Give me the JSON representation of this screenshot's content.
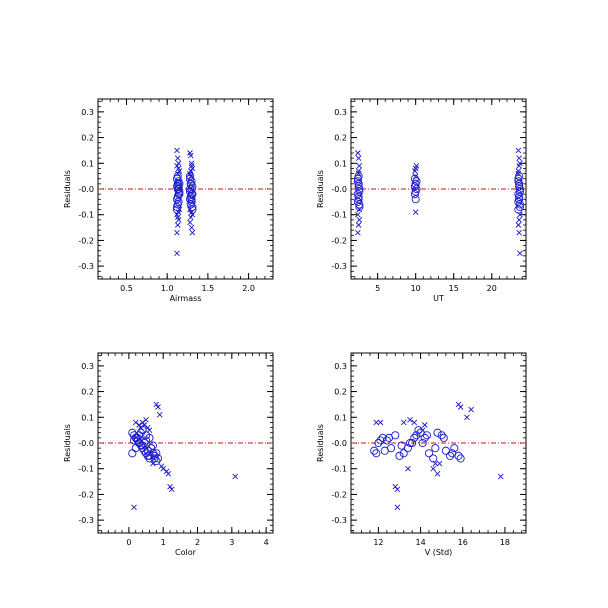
{
  "colors": {
    "marker": "#1a1acc",
    "zero_line": "#cc1111",
    "axis": "#000000",
    "background": "#ffffff"
  },
  "chart_data": [
    {
      "type": "scatter",
      "xlabel": "Airmass",
      "ylabel": "Residuals",
      "xlim": [
        0.15,
        2.3
      ],
      "ylim": [
        -0.35,
        0.35
      ],
      "xticks": [
        0.5,
        1.0,
        1.5,
        2.0
      ],
      "xtick_labels": [
        "0.5",
        "1.0",
        "1.5",
        "2.0"
      ],
      "yticks": [
        -0.3,
        -0.2,
        -0.1,
        0.0,
        0.1,
        0.2,
        0.3
      ],
      "ytick_labels": [
        "-0.3",
        "-0.2",
        "-0.1",
        "-0.0",
        "0.1",
        "0.2",
        "0.3"
      ],
      "zero_line": 0,
      "grid": false,
      "series": [
        {
          "marker": "circle",
          "x": [
            1.12,
            1.13,
            1.14,
            1.15,
            1.12,
            1.13,
            1.14,
            1.12,
            1.15,
            1.13,
            1.14,
            1.12,
            1.13,
            1.15,
            1.14,
            1.12,
            1.13,
            1.14,
            1.28,
            1.29,
            1.3,
            1.31,
            1.28,
            1.29,
            1.3,
            1.31,
            1.28,
            1.29,
            1.3,
            1.31,
            1.28,
            1.29,
            1.3,
            1.31,
            1.28,
            1.3
          ],
          "y": [
            0.04,
            0.02,
            0.0,
            -0.02,
            -0.04,
            -0.06,
            0.03,
            0.01,
            -0.01,
            -0.03,
            -0.05,
            -0.07,
            0.05,
            0.02,
            -0.02,
            -0.08,
            0.0,
            0.01,
            0.04,
            0.02,
            0.0,
            -0.02,
            -0.04,
            -0.06,
            0.03,
            0.01,
            -0.01,
            -0.03,
            -0.05,
            -0.07,
            0.05,
            0.02,
            -0.02,
            -0.08,
            0.0,
            -0.04
          ]
        },
        {
          "marker": "x",
          "x": [
            1.12,
            1.13,
            1.14,
            1.12,
            1.15,
            1.13,
            1.12,
            1.14,
            1.13,
            1.12,
            1.15,
            1.14,
            1.13,
            1.12,
            1.14,
            1.28,
            1.29,
            1.3,
            1.31,
            1.28,
            1.29,
            1.3,
            1.31,
            1.29,
            1.28,
            1.3,
            1.31,
            1.29,
            1.28,
            1.3
          ],
          "y": [
            0.15,
            0.12,
            0.1,
            0.09,
            0.07,
            0.06,
            -0.1,
            -0.12,
            -0.14,
            -0.17,
            -0.08,
            -0.09,
            -0.11,
            -0.25,
            0.08,
            0.14,
            0.13,
            0.09,
            0.08,
            0.06,
            0.05,
            -0.09,
            -0.1,
            -0.11,
            -0.13,
            -0.15,
            -0.17,
            0.07,
            -0.08,
            0.1
          ]
        }
      ]
    },
    {
      "type": "scatter",
      "xlabel": "UT",
      "ylabel": "Residuals",
      "xlim": [
        1.5,
        24.5
      ],
      "ylim": [
        -0.35,
        0.35
      ],
      "xticks": [
        5,
        10,
        15,
        20
      ],
      "xtick_labels": [
        "5",
        "10",
        "15",
        "20"
      ],
      "yticks": [
        -0.3,
        -0.2,
        -0.1,
        0.0,
        0.1,
        0.2,
        0.3
      ],
      "ytick_labels": [
        "-0.3",
        "-0.2",
        "-0.1",
        "-0.0",
        "0.1",
        "0.2",
        "0.3"
      ],
      "zero_line": 0,
      "grid": false,
      "series": [
        {
          "marker": "circle",
          "x": [
            2.4,
            2.5,
            2.6,
            2.4,
            2.5,
            2.6,
            2.4,
            2.5,
            2.6,
            2.5,
            2.4,
            2.6,
            2.5,
            9.9,
            10.0,
            10.1,
            9.9,
            10.0,
            10.1,
            10.0,
            9.9,
            23.5,
            23.6,
            23.7,
            23.5,
            23.6,
            23.7,
            23.5,
            23.6,
            23.7,
            23.6,
            23.5,
            23.7,
            23.6,
            23.5
          ],
          "y": [
            0.04,
            0.02,
            0.0,
            -0.02,
            -0.04,
            -0.06,
            0.03,
            0.01,
            -0.01,
            -0.03,
            -0.05,
            -0.07,
            0.05,
            0.04,
            0.02,
            0.0,
            -0.02,
            -0.04,
            0.03,
            -0.01,
            0.01,
            0.04,
            0.02,
            0.0,
            -0.02,
            -0.04,
            -0.06,
            0.03,
            0.01,
            -0.01,
            -0.03,
            -0.05,
            -0.07,
            0.05,
            -0.08
          ]
        },
        {
          "marker": "x",
          "x": [
            2.4,
            2.5,
            2.6,
            2.5,
            2.4,
            2.6,
            2.5,
            2.4,
            2.6,
            2.5,
            10.0,
            9.9,
            10.1,
            10.0,
            10.0,
            23.5,
            23.6,
            23.7,
            23.6,
            23.5,
            23.7,
            23.6,
            23.5,
            23.6,
            23.7,
            23.5
          ],
          "y": [
            0.14,
            0.12,
            0.09,
            0.07,
            -0.1,
            -0.12,
            -0.14,
            -0.17,
            -0.08,
            0.06,
            0.08,
            0.07,
            0.09,
            0.05,
            -0.09,
            0.15,
            0.12,
            0.1,
            0.09,
            0.07,
            -0.1,
            -0.12,
            -0.14,
            -0.17,
            -0.25,
            0.06
          ]
        }
      ]
    },
    {
      "type": "scatter",
      "xlabel": "Color",
      "ylabel": "Residuals",
      "xlim": [
        -0.9,
        4.2
      ],
      "ylim": [
        -0.35,
        0.35
      ],
      "xticks": [
        0,
        1,
        2,
        3,
        4
      ],
      "xtick_labels": [
        "0",
        "1",
        "2",
        "3",
        "4"
      ],
      "yticks": [
        -0.3,
        -0.2,
        -0.1,
        0.0,
        0.1,
        0.2,
        0.3
      ],
      "ytick_labels": [
        "-0.3",
        "-0.2",
        "-0.1",
        "-0.0",
        "0.1",
        "0.2",
        "0.3"
      ],
      "zero_line": 0,
      "grid": false,
      "series": [
        {
          "marker": "circle",
          "x": [
            0.1,
            0.15,
            0.2,
            0.25,
            0.3,
            0.35,
            0.4,
            0.45,
            0.5,
            0.55,
            0.6,
            0.65,
            0.7,
            0.75,
            0.8,
            0.2,
            0.3,
            0.4,
            0.5,
            0.6,
            0.7,
            0.1,
            0.25,
            0.35,
            0.45,
            0.55,
            0.65,
            0.75,
            0.15,
            0.4,
            0.5,
            0.6,
            0.8,
            0.3,
            0.2,
            0.85
          ],
          "y": [
            0.04,
            0.03,
            0.02,
            0.01,
            0.0,
            -0.01,
            -0.02,
            -0.03,
            -0.04,
            -0.05,
            -0.06,
            -0.02,
            -0.04,
            -0.05,
            -0.07,
            -0.02,
            0.03,
            0.05,
            0.01,
            0.02,
            -0.01,
            -0.04,
            0.02,
            0.04,
            0.0,
            -0.03,
            -0.02,
            -0.06,
            0.01,
            -0.01,
            0.03,
            -0.05,
            -0.04,
            0.0,
            0.02,
            -0.06
          ]
        },
        {
          "marker": "x",
          "x": [
            0.2,
            0.3,
            0.4,
            0.5,
            0.8,
            0.85,
            0.9,
            0.35,
            0.45,
            0.55,
            0.6,
            1.0,
            1.1,
            1.15,
            1.2,
            1.25,
            0.15,
            3.1,
            0.7,
            0.95
          ],
          "y": [
            0.08,
            0.07,
            0.08,
            0.09,
            0.15,
            0.14,
            0.11,
            0.06,
            0.07,
            0.06,
            0.05,
            -0.1,
            -0.11,
            -0.12,
            -0.17,
            -0.18,
            -0.25,
            -0.13,
            -0.08,
            -0.09
          ]
        }
      ]
    },
    {
      "type": "scatter",
      "xlabel": "V (Std)",
      "ylabel": "Residuals",
      "xlim": [
        10.7,
        19.0
      ],
      "ylim": [
        -0.35,
        0.35
      ],
      "xticks": [
        12,
        14,
        16,
        18
      ],
      "xtick_labels": [
        "12",
        "14",
        "16",
        "18"
      ],
      "yticks": [
        -0.3,
        -0.2,
        -0.1,
        0.0,
        0.1,
        0.2,
        0.3
      ],
      "ytick_labels": [
        "-0.3",
        "-0.2",
        "-0.1",
        "-0.0",
        "0.1",
        "0.2",
        "0.3"
      ],
      "zero_line": 0,
      "grid": false,
      "series": [
        {
          "marker": "circle",
          "x": [
            11.8,
            11.9,
            12.0,
            12.2,
            12.4,
            12.6,
            12.8,
            13.0,
            13.2,
            13.4,
            13.6,
            13.8,
            14.0,
            14.2,
            14.4,
            14.6,
            14.8,
            15.0,
            15.2,
            15.4,
            15.6,
            15.8,
            12.1,
            12.5,
            13.1,
            13.5,
            13.9,
            14.3,
            14.7,
            15.1,
            15.5,
            15.9,
            14.1,
            13.7,
            12.3
          ],
          "y": [
            -0.03,
            -0.04,
            0.0,
            0.02,
            0.01,
            -0.02,
            0.03,
            -0.05,
            -0.04,
            -0.02,
            0.0,
            0.03,
            0.04,
            0.02,
            -0.04,
            -0.06,
            0.04,
            0.03,
            -0.03,
            -0.05,
            -0.02,
            -0.05,
            0.01,
            0.02,
            -0.01,
            0.0,
            0.05,
            0.03,
            -0.02,
            0.02,
            -0.04,
            -0.06,
            0.0,
            0.02,
            -0.03
          ]
        },
        {
          "marker": "x",
          "x": [
            11.9,
            12.1,
            12.8,
            12.9,
            13.4,
            13.7,
            14.2,
            14.6,
            14.8,
            15.8,
            15.9,
            16.2,
            16.4,
            17.8,
            13.2,
            13.5,
            14.1,
            14.9,
            12.9,
            14.7
          ],
          "y": [
            0.08,
            0.08,
            -0.17,
            -0.25,
            -0.1,
            0.08,
            0.07,
            -0.1,
            -0.12,
            0.15,
            0.14,
            0.1,
            0.13,
            -0.13,
            0.08,
            0.09,
            0.05,
            -0.08,
            -0.18,
            -0.08
          ]
        }
      ]
    }
  ]
}
